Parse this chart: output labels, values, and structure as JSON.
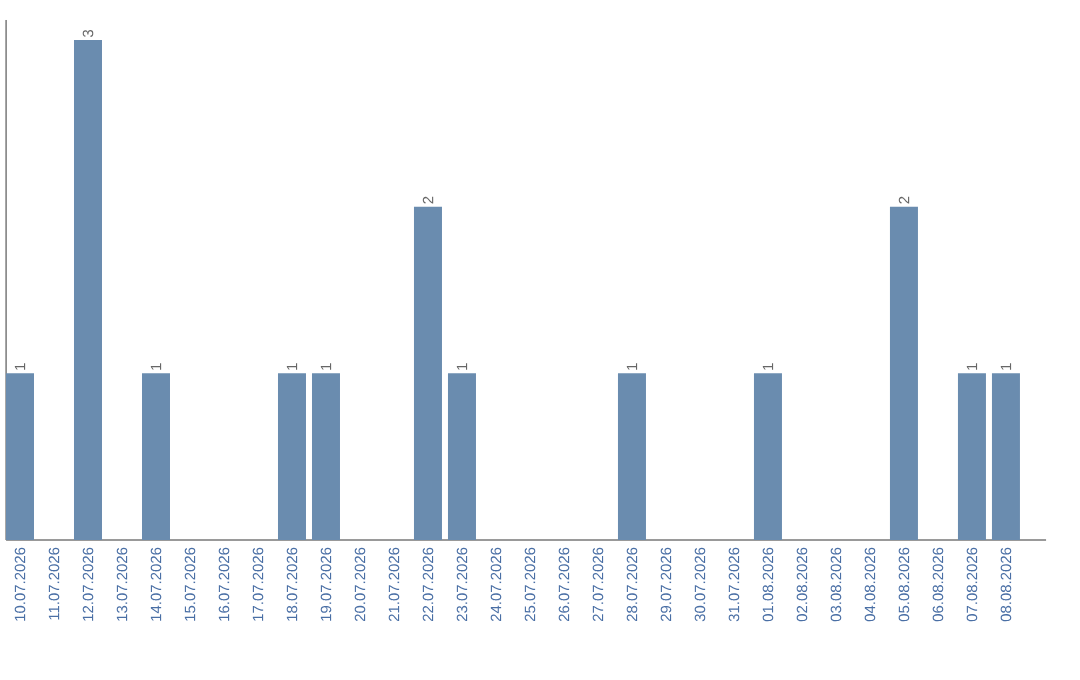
{
  "chart_data": {
    "type": "bar",
    "categories": [
      "10.07.2026",
      "11.07.2026",
      "12.07.2026",
      "13.07.2026",
      "14.07.2026",
      "15.07.2026",
      "16.07.2026",
      "17.07.2026",
      "18.07.2026",
      "19.07.2026",
      "20.07.2026",
      "21.07.2026",
      "22.07.2026",
      "23.07.2026",
      "24.07.2026",
      "25.07.2026",
      "26.07.2026",
      "27.07.2026",
      "28.07.2026",
      "29.07.2026",
      "30.07.2026",
      "31.07.2026",
      "01.08.2026",
      "02.08.2026",
      "03.08.2026",
      "04.08.2026",
      "05.08.2026",
      "06.08.2026",
      "07.08.2026",
      "08.08.2026"
    ],
    "values": [
      1,
      0,
      3,
      0,
      1,
      0,
      0,
      0,
      1,
      1,
      0,
      0,
      2,
      1,
      0,
      0,
      0,
      0,
      1,
      0,
      0,
      0,
      1,
      0,
      0,
      0,
      2,
      0,
      1,
      1
    ],
    "value_labels": [
      "1",
      null,
      "3",
      null,
      "1",
      null,
      null,
      null,
      "1",
      "1",
      null,
      null,
      "2",
      "1",
      null,
      null,
      null,
      null,
      "1",
      null,
      null,
      null,
      "1",
      null,
      null,
      null,
      "2",
      null,
      "1",
      "1"
    ],
    "color": "#6a8caf",
    "tick_labels": "x"
  }
}
